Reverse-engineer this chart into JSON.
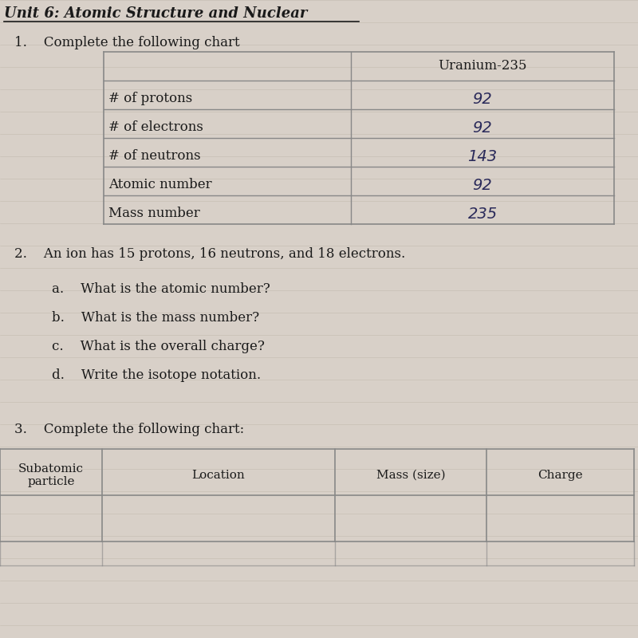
{
  "title": "Unit 6: Atomic Structure and Nuclear",
  "background_color": "#d8d0c8",
  "paper_color": "#f0ece4",
  "q1_label": "1.    Complete the following chart",
  "table1_header_col2": "Uranium-235",
  "table1_rows": [
    [
      "# of protons",
      "92"
    ],
    [
      "# of electrons",
      "92"
    ],
    [
      "# of neutrons",
      "143"
    ],
    [
      "Atomic number",
      "92"
    ],
    [
      "Mass number",
      "235"
    ]
  ],
  "q2_label": "2.    An ion has 15 protons, 16 neutrons, and 18 electrons.",
  "q2_subquestions": [
    "a.    What is the atomic number?",
    "b.    What is the mass number?",
    "c.    What is the overall charge?",
    "d.    Write the isotope notation."
  ],
  "q3_label": "3.    Complete the following chart:",
  "table3_headers": [
    "Subatomic\nparticle",
    "Location",
    "Mass (size)",
    "Charge"
  ],
  "handwritten_color": "#2a2a5a",
  "print_color": "#1a1a1a",
  "grid_line_color": "#888888",
  "faint_grid_color": "#b0a898"
}
